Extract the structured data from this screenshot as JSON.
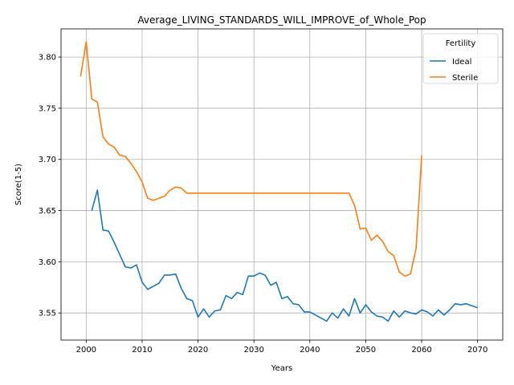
{
  "chart_data": {
    "type": "line",
    "title": "Average_LIVING_STANDARDS_WILL_IMPROVE_of_Whole_Pop",
    "xlabel": "Years",
    "ylabel": "Score(1-5)",
    "xlim": [
      1995.5,
      2074.5
    ],
    "ylim": [
      3.5235,
      3.8275
    ],
    "xticks": [
      2000,
      2010,
      2020,
      2030,
      2040,
      2050,
      2060,
      2070
    ],
    "yticks": [
      3.55,
      3.6,
      3.65,
      3.7,
      3.75,
      3.8
    ],
    "ytick_labels": [
      "3.55",
      "3.60",
      "3.65",
      "3.70",
      "3.75",
      "3.80"
    ],
    "grid": true,
    "legend": {
      "title": "Fertility",
      "placement": "top-right"
    },
    "series": [
      {
        "name": "Ideal",
        "color": "#1f77b4",
        "x": [
          2001,
          2002,
          2003,
          2004,
          2005,
          2006,
          2007,
          2008,
          2009,
          2010,
          2011,
          2012,
          2013,
          2014,
          2015,
          2016,
          2017,
          2018,
          2019,
          2020,
          2021,
          2022,
          2023,
          2024,
          2025,
          2026,
          2027,
          2028,
          2029,
          2030,
          2031,
          2032,
          2033,
          2034,
          2035,
          2036,
          2037,
          2038,
          2039,
          2040,
          2041,
          2042,
          2043,
          2044,
          2045,
          2046,
          2047,
          2048,
          2049,
          2050,
          2051,
          2052,
          2053,
          2054,
          2055,
          2056,
          2057,
          2058,
          2059,
          2060,
          2061,
          2062,
          2063,
          2064,
          2065,
          2066,
          2067,
          2068,
          2069,
          2070
        ],
        "y": [
          3.65,
          3.67,
          3.631,
          3.63,
          3.619,
          3.607,
          3.595,
          3.594,
          3.597,
          3.58,
          3.573,
          3.576,
          3.579,
          3.587,
          3.587,
          3.588,
          3.574,
          3.564,
          3.562,
          3.546,
          3.554,
          3.546,
          3.552,
          3.553,
          3.567,
          3.564,
          3.57,
          3.568,
          3.586,
          3.586,
          3.589,
          3.587,
          3.577,
          3.58,
          3.564,
          3.566,
          3.559,
          3.558,
          3.551,
          3.551,
          3.548,
          3.545,
          3.542,
          3.55,
          3.545,
          3.554,
          3.547,
          3.564,
          3.55,
          3.558,
          3.551,
          3.547,
          3.546,
          3.542,
          3.552,
          3.546,
          3.552,
          3.55,
          3.549,
          3.553,
          3.551,
          3.547,
          3.553,
          3.548,
          3.553,
          3.559,
          3.558,
          3.559,
          3.557,
          3.555
        ]
      },
      {
        "name": "Sterile",
        "color": "#ff7f0e",
        "x": [
          1999,
          2000,
          2001,
          2002,
          2003,
          2004,
          2005,
          2006,
          2007,
          2008,
          2009,
          2010,
          2011,
          2012,
          2013,
          2014,
          2015,
          2016,
          2017,
          2018,
          2019,
          2020,
          2021,
          2022,
          2023,
          2024,
          2025,
          2026,
          2027,
          2028,
          2029,
          2030,
          2031,
          2032,
          2033,
          2034,
          2035,
          2036,
          2037,
          2038,
          2039,
          2040,
          2041,
          2042,
          2043,
          2044,
          2045,
          2046,
          2047,
          2048,
          2049,
          2050,
          2051,
          2052,
          2053,
          2054,
          2055,
          2056,
          2057,
          2058,
          2059,
          2060
        ],
        "y": [
          3.781,
          3.815,
          3.759,
          3.756,
          3.722,
          3.715,
          3.712,
          3.704,
          3.703,
          3.696,
          3.688,
          3.678,
          3.662,
          3.66,
          3.662,
          3.664,
          3.67,
          3.673,
          3.672,
          3.667,
          3.667,
          3.667,
          3.667,
          3.667,
          3.667,
          3.667,
          3.667,
          3.667,
          3.667,
          3.667,
          3.667,
          3.667,
          3.667,
          3.667,
          3.667,
          3.667,
          3.667,
          3.667,
          3.667,
          3.667,
          3.667,
          3.667,
          3.667,
          3.667,
          3.667,
          3.667,
          3.667,
          3.667,
          3.667,
          3.655,
          3.632,
          3.633,
          3.621,
          3.626,
          3.62,
          3.61,
          3.606,
          3.59,
          3.586,
          3.588,
          3.613,
          3.704
        ]
      }
    ]
  }
}
